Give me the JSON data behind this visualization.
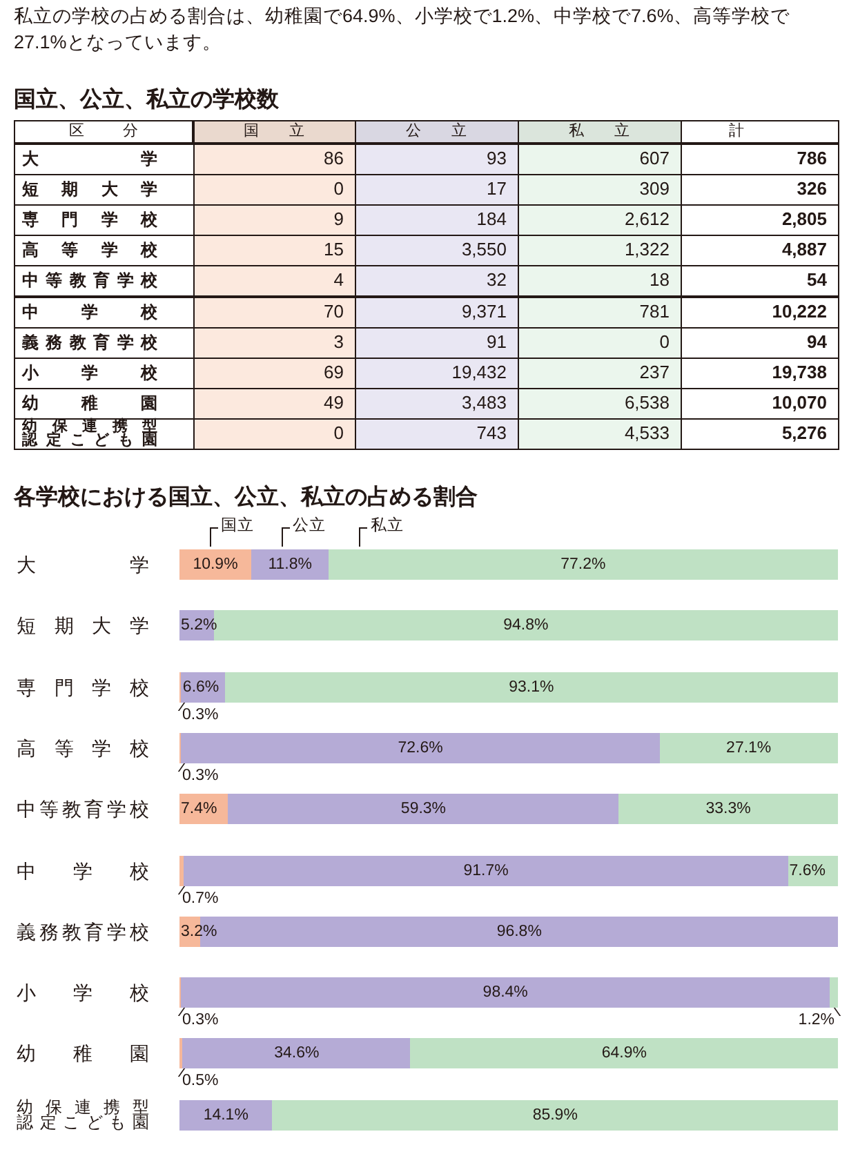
{
  "chart_data": [
    {
      "type": "other",
      "title": "国立、公立、私立の学校数",
      "annotations": [
        "私立の学校の占める割合は、幼稚園で64.9%、小学校で1.2%、中学校で7.6%、高等学校で27.1%となっています。"
      ],
      "ylabel": "区分",
      "categories": [
        "大学",
        "短期大学",
        "専門学校",
        "高等学校",
        "中等教育学校",
        "中学校",
        "義務教育学校",
        "小学校",
        "幼稚園",
        "幼保連携型認定こども園"
      ],
      "series": [
        {
          "name": "国立",
          "color": "#fce9de",
          "values": [
            86,
            0,
            9,
            15,
            4,
            70,
            3,
            69,
            49,
            0
          ],
          "value_labels": [
            "86",
            "0",
            "9",
            "15",
            "4",
            "70",
            "3",
            "69",
            "49",
            "0"
          ]
        },
        {
          "name": "公立",
          "color": "#e9e7f3",
          "values": [
            93,
            17,
            184,
            3550,
            32,
            9371,
            91,
            19432,
            3483,
            743
          ],
          "value_labels": [
            "93",
            "17",
            "184",
            "3,550",
            "32",
            "9,371",
            "91",
            "19,432",
            "3,483",
            "743"
          ]
        },
        {
          "name": "私立",
          "color": "#ebf6ed",
          "values": [
            607,
            309,
            2612,
            1322,
            18,
            781,
            0,
            237,
            6538,
            4533
          ],
          "value_labels": [
            "607",
            "309",
            "2,612",
            "1,322",
            "18",
            "781",
            "0",
            "237",
            "6,538",
            "4,533"
          ]
        },
        {
          "name": "計",
          "values": [
            786,
            326,
            2805,
            4887,
            54,
            10222,
            94,
            19738,
            10070,
            5276
          ],
          "value_labels": [
            "786",
            "326",
            "2,805",
            "4,887",
            "54",
            "10,222",
            "94",
            "19,738",
            "10,070",
            "5,276"
          ]
        }
      ]
    },
    {
      "type": "bar",
      "orientation": "horizontal",
      "stacked": true,
      "title": "各学校における国立、公立、私立の占める割合",
      "xlim": [
        0,
        100
      ],
      "categories": [
        "大学",
        "短期大学",
        "専門学校",
        "高等学校",
        "中等教育学校",
        "中学校",
        "義務教育学校",
        "小学校",
        "幼稚園",
        "幼保連携型認定こども園"
      ],
      "series": [
        {
          "name": "国立",
          "color": "#f6b89a",
          "values": [
            10.9,
            0,
            0.3,
            0.3,
            7.4,
            0.7,
            3.2,
            0.3,
            0.5,
            0
          ],
          "value_labels": [
            "10.9%",
            null,
            "0.3%",
            "0.3%",
            "7.4%",
            "0.7%",
            "3.2%",
            "0.3%",
            "0.5%",
            null
          ]
        },
        {
          "name": "公立",
          "color": "#b5abd6",
          "values": [
            11.8,
            5.2,
            6.6,
            72.6,
            59.3,
            91.7,
            96.8,
            98.4,
            34.6,
            14.1
          ],
          "value_labels": [
            "11.8%",
            "5.2%",
            "6.6%",
            "72.6%",
            "59.3%",
            "91.7%",
            "96.8%",
            "98.4%",
            "34.6%",
            "14.1%"
          ]
        },
        {
          "name": "私立",
          "color": "#bfe1c4",
          "values": [
            77.2,
            94.8,
            93.1,
            27.1,
            33.3,
            7.6,
            0,
            1.2,
            64.9,
            85.9
          ],
          "value_labels": [
            "77.2%",
            "94.8%",
            "93.1%",
            "27.1%",
            "33.3%",
            "7.6%",
            null,
            "1.2%",
            "64.9%",
            "85.9%"
          ]
        }
      ]
    }
  ]
}
